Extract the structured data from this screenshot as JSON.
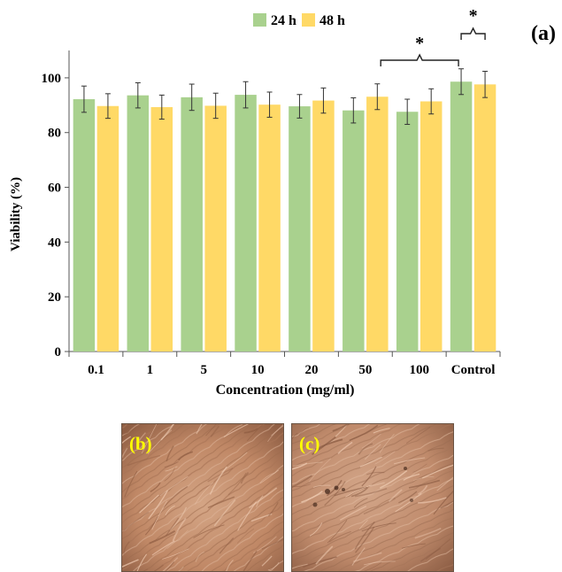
{
  "chart_data": {
    "type": "bar",
    "panel_label": "(a)",
    "xlabel": "Concentration (mg/ml)",
    "ylabel": "Viability (%)",
    "ylim": [
      0,
      110
    ],
    "yticks": [
      0,
      20,
      40,
      60,
      80,
      100
    ],
    "categories": [
      "0.1",
      "1",
      "5",
      "10",
      "20",
      "50",
      "100",
      "Control"
    ],
    "series": [
      {
        "name": "24 h",
        "color": "#a9d18e",
        "values": [
          92.2,
          93.6,
          92.9,
          93.8,
          89.6,
          88.1,
          87.6,
          98.6
        ],
        "errors": [
          4.8,
          4.6,
          4.8,
          4.8,
          4.3,
          4.6,
          4.6,
          4.7
        ]
      },
      {
        "name": "48 h",
        "color": "#ffd966",
        "values": [
          89.7,
          89.3,
          89.8,
          90.2,
          91.7,
          93.1,
          91.4,
          97.6
        ],
        "errors": [
          4.5,
          4.4,
          4.6,
          4.6,
          4.6,
          4.7,
          4.6,
          4.8
        ]
      }
    ],
    "legend_position": "top",
    "annotations": [
      "*",
      "*"
    ],
    "grid": false
  },
  "images": [
    {
      "label": "(b)"
    },
    {
      "label": "(c)"
    }
  ]
}
